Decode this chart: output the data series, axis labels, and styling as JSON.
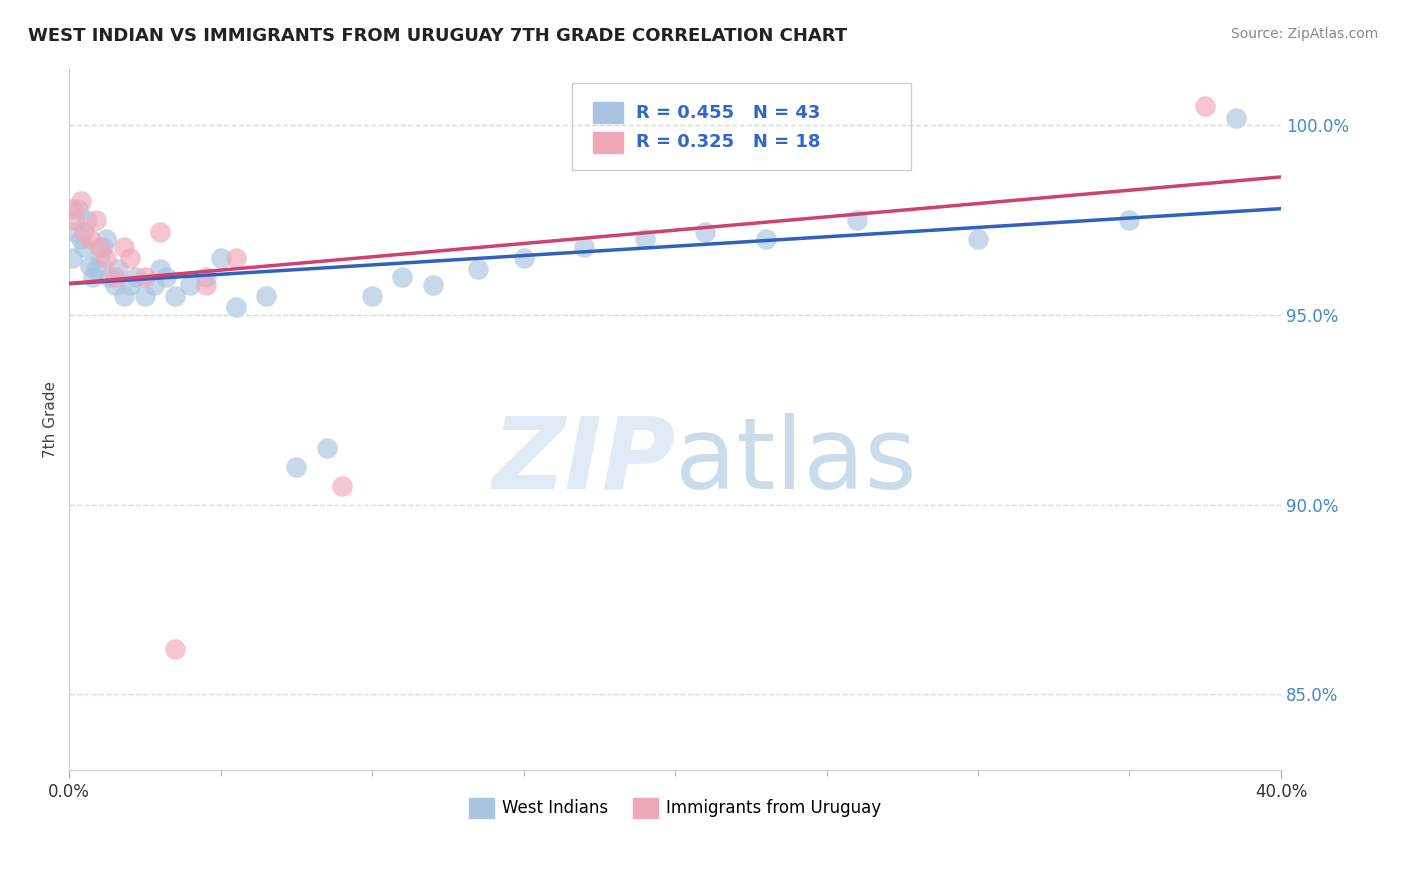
{
  "title": "WEST INDIAN VS IMMIGRANTS FROM URUGUAY 7TH GRADE CORRELATION CHART",
  "source": "Source: ZipAtlas.com",
  "ylabel": "7th Grade",
  "xlim": [
    0.0,
    40.0
  ],
  "ylim": [
    83.0,
    101.5
  ],
  "yticks": [
    85.0,
    90.0,
    95.0,
    100.0
  ],
  "ytick_labels": [
    "85.0%",
    "90.0%",
    "95.0%",
    "100.0%"
  ],
  "blue_R": 0.455,
  "blue_N": 43,
  "pink_R": 0.325,
  "pink_N": 18,
  "blue_color": "#a8c4e0",
  "pink_color": "#f0a8b8",
  "blue_line_color": "#3060c0",
  "pink_line_color": "#d04070",
  "legend_label_blue": "West Indians",
  "legend_label_pink": "Immigrants from Uruguay",
  "blue_x": [
    0.1,
    0.2,
    0.3,
    0.4,
    0.5,
    0.6,
    0.7,
    0.8,
    0.9,
    1.0,
    1.1,
    1.2,
    1.3,
    1.5,
    1.6,
    1.8,
    2.0,
    2.2,
    2.5,
    2.8,
    3.0,
    3.2,
    3.5,
    4.0,
    4.5,
    5.0,
    5.5,
    6.5,
    7.5,
    8.5,
    10.0,
    11.0,
    12.0,
    13.5,
    15.0,
    17.0,
    19.0,
    21.0,
    23.0,
    26.0,
    30.0,
    35.0,
    38.5
  ],
  "blue_y": [
    96.5,
    97.2,
    97.8,
    97.0,
    96.8,
    97.5,
    96.3,
    96.0,
    96.2,
    96.5,
    96.8,
    97.0,
    96.0,
    95.8,
    96.2,
    95.5,
    95.8,
    96.0,
    95.5,
    95.8,
    96.2,
    96.0,
    95.5,
    95.8,
    96.0,
    96.5,
    95.2,
    95.5,
    91.0,
    91.5,
    95.5,
    96.0,
    95.8,
    96.2,
    96.5,
    96.8,
    97.0,
    97.2,
    97.0,
    97.5,
    97.0,
    97.5,
    100.2
  ],
  "pink_x": [
    0.1,
    0.2,
    0.4,
    0.5,
    0.7,
    0.9,
    1.0,
    1.2,
    1.5,
    1.8,
    2.0,
    2.5,
    3.0,
    4.5,
    5.5,
    9.0,
    37.5
  ],
  "pink_y": [
    97.8,
    97.5,
    98.0,
    97.2,
    97.0,
    97.5,
    96.8,
    96.5,
    96.0,
    96.8,
    96.5,
    96.0,
    97.2,
    95.8,
    96.5,
    90.5,
    100.5
  ],
  "pink_outlier_x": [
    3.5
  ],
  "pink_outlier_y": [
    86.2
  ]
}
